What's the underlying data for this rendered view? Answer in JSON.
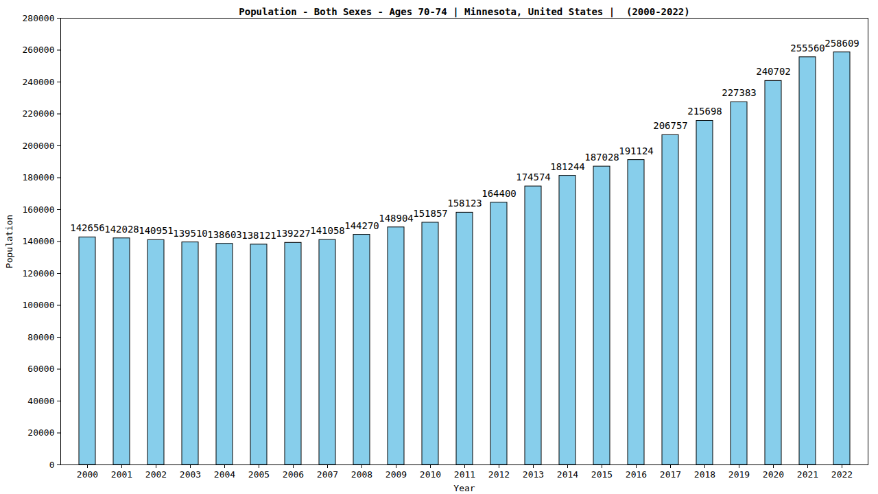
{
  "chart_data": {
    "type": "bar",
    "title": "Population - Both Sexes - Ages 70-74 | Minnesota, United States |  (2000-2022)",
    "x_label": "Year",
    "y_label": "Population",
    "categories": [
      "2000",
      "2001",
      "2002",
      "2003",
      "2004",
      "2005",
      "2006",
      "2007",
      "2008",
      "2009",
      "2010",
      "2011",
      "2012",
      "2013",
      "2014",
      "2015",
      "2016",
      "2017",
      "2018",
      "2019",
      "2020",
      "2021",
      "2022"
    ],
    "values": [
      142656,
      142028,
      140951,
      139510,
      138603,
      138121,
      139227,
      141058,
      144270,
      148904,
      151857,
      158123,
      164400,
      174574,
      181244,
      187028,
      191124,
      206757,
      215698,
      227383,
      240702,
      255560,
      258609
    ],
    "color": "#87ceeb",
    "ylim": [
      0,
      280000
    ],
    "yticks": [
      0,
      20000,
      40000,
      60000,
      80000,
      100000,
      120000,
      140000,
      160000,
      180000,
      200000,
      220000,
      240000,
      260000,
      280000
    ],
    "grid": false,
    "data_labels": true
  }
}
